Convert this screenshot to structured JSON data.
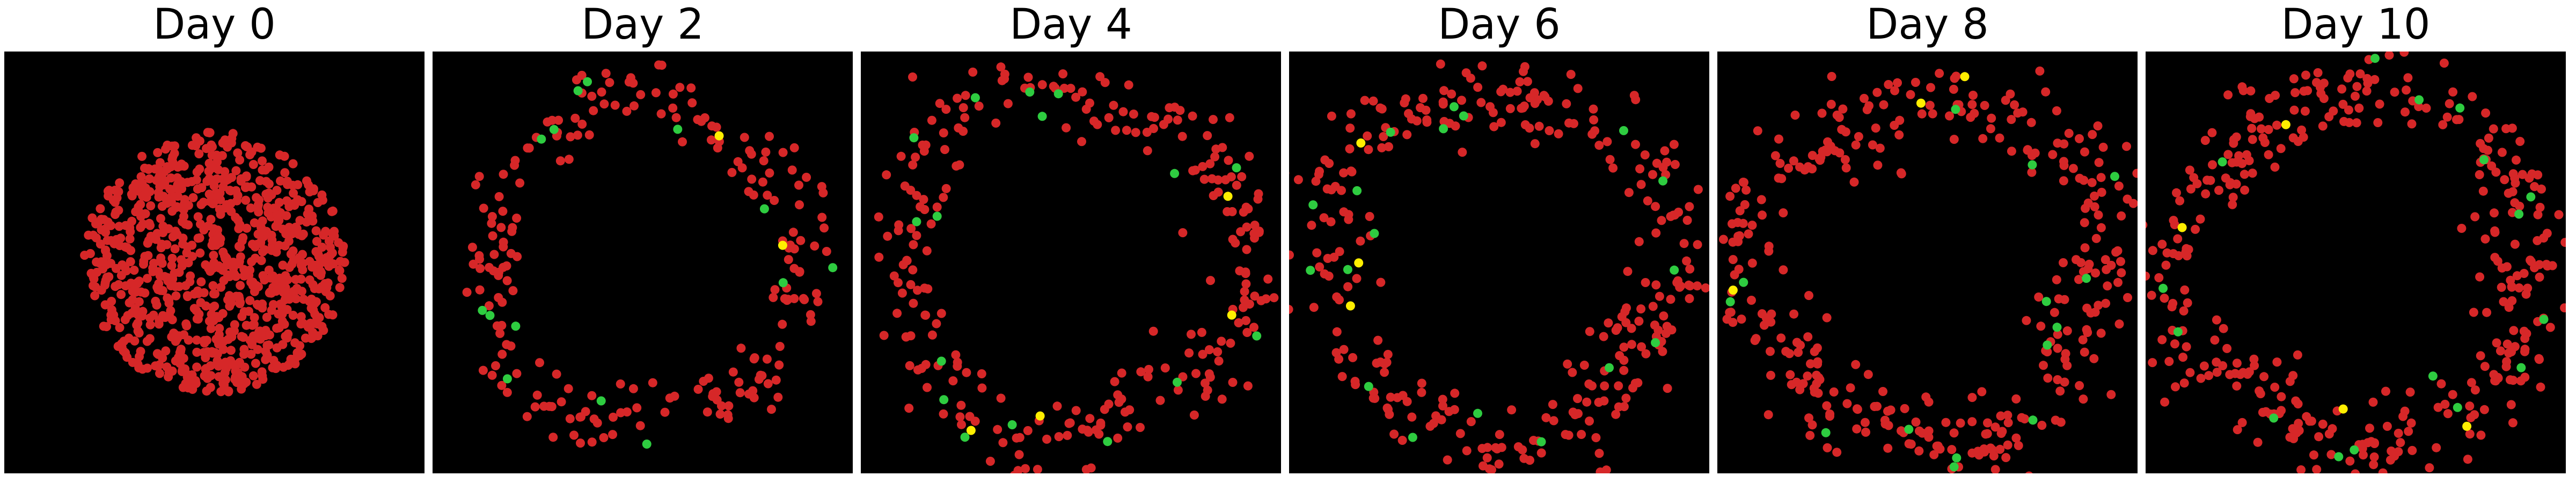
{
  "colors": {
    "background": "#000000",
    "cell_red": "#d62728",
    "cell_green": "#2ecc40",
    "cell_yellow": "#ffee00"
  },
  "chart_data": [
    {
      "type": "scatter",
      "title": "Day 0",
      "background": "black",
      "axes": "off",
      "pattern": "filled-disc",
      "center": [
        0.5,
        0.5
      ],
      "radius": 0.31,
      "red_count": 900,
      "green_count": 0,
      "yellow_count": 0
    },
    {
      "type": "scatter",
      "title": "Day 2",
      "background": "black",
      "axes": "off",
      "pattern": "ring",
      "center": [
        0.5,
        0.5
      ],
      "radius": 0.38,
      "band": 0.04,
      "red_count": 220,
      "green_count": 14,
      "yellow_count": 2
    },
    {
      "type": "scatter",
      "title": "Day 4",
      "background": "black",
      "axes": "off",
      "pattern": "ring",
      "center": [
        0.5,
        0.5
      ],
      "radius": 0.41,
      "band": 0.045,
      "red_count": 260,
      "green_count": 16,
      "yellow_count": 4
    },
    {
      "type": "scatter",
      "title": "Day 6",
      "background": "black",
      "axes": "off",
      "pattern": "ring",
      "center": [
        0.5,
        0.5
      ],
      "radius": 0.42,
      "band": 0.05,
      "red_count": 300,
      "green_count": 18,
      "yellow_count": 3
    },
    {
      "type": "scatter",
      "title": "Day 8",
      "background": "black",
      "axes": "off",
      "pattern": "ring",
      "center": [
        0.5,
        0.52
      ],
      "radius": 0.41,
      "band": 0.055,
      "red_count": 340,
      "green_count": 16,
      "yellow_count": 3
    },
    {
      "type": "scatter",
      "title": "Day 10",
      "background": "black",
      "axes": "off",
      "pattern": "ring",
      "center": [
        0.5,
        0.51
      ],
      "radius": 0.42,
      "band": 0.055,
      "red_count": 360,
      "green_count": 16,
      "yellow_count": 4
    }
  ]
}
